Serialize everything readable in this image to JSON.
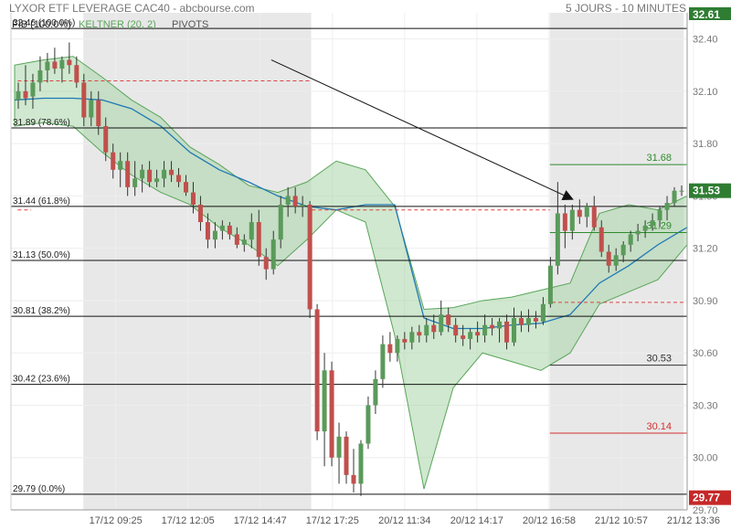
{
  "header": {
    "title": "LYXOR ETF LEVERAGE CAC40 - abcbourse.com",
    "period": "5 JOURS - 10 MINUTES"
  },
  "legend": {
    "fibo": "FIB (100.0%)",
    "keltner": "KELTNER (20, 2)",
    "pivots": "PIVOTS"
  },
  "colors": {
    "up": "#5a9a5a",
    "down": "#c0504d",
    "band_fill": "#a8d6a8",
    "band_edge": "#5aa55a",
    "mid": "#1f78b4",
    "shade": "#e8e8e8",
    "last_price": "#2e7d32",
    "low_marker": "#c62828",
    "pivot_res": "#2e8b2e",
    "pivot_sup": "#d32f2f"
  },
  "chart_data": {
    "type": "candlestick",
    "ylim": [
      29.7,
      32.55
    ],
    "x_ticks": [
      "17/12 09:25",
      "17/12 12:05",
      "17/12 14:47",
      "17/12 17:25",
      "20/12 11:34",
      "20/12 14:17",
      "20/12 16:58",
      "21/12 10:57",
      "21/12 13:36"
    ],
    "y_ticks": [
      "32.40",
      "32.10",
      "31.80",
      "31.50",
      "31.20",
      "30.90",
      "30.60",
      "30.30",
      "30.00",
      "29.70"
    ],
    "fibonacci": [
      {
        "label": "32.46 (100.0%)",
        "value": 32.46
      },
      {
        "label": "31.89 (78.6%)",
        "value": 31.89
      },
      {
        "label": "31.44 (61.8%)",
        "value": 31.44
      },
      {
        "label": "31.13 (50.0%)",
        "value": 31.13
      },
      {
        "label": "30.81 (38.2%)",
        "value": 30.81
      },
      {
        "label": "30.42 (23.6%)",
        "value": 30.42
      },
      {
        "label": "29.79 (0.0%)",
        "value": 29.79
      }
    ],
    "pivot_levels": [
      {
        "label": "31.68",
        "value": 31.68,
        "kind": "resistance"
      },
      {
        "label": "31.29",
        "value": 31.29,
        "kind": "pivot"
      },
      {
        "label": "30.53",
        "value": 30.53,
        "kind": "neutral"
      },
      {
        "label": "30.14",
        "value": 30.14,
        "kind": "support"
      }
    ],
    "last_price": {
      "label": "31.53",
      "value": 31.53
    },
    "low_marker": {
      "label": "29.77",
      "value": 29.77
    },
    "top_marker": {
      "label": "32.61",
      "value": 32.61
    },
    "candles": [
      {
        "o": 32.05,
        "h": 32.15,
        "l": 32.0,
        "c": 32.1
      },
      {
        "o": 32.1,
        "h": 32.25,
        "l": 32.02,
        "c": 32.06
      },
      {
        "o": 32.07,
        "h": 32.2,
        "l": 32.0,
        "c": 32.15
      },
      {
        "o": 32.15,
        "h": 32.3,
        "l": 32.1,
        "c": 32.22
      },
      {
        "o": 32.22,
        "h": 32.32,
        "l": 32.15,
        "c": 32.27
      },
      {
        "o": 32.27,
        "h": 32.35,
        "l": 32.2,
        "c": 32.23
      },
      {
        "o": 32.23,
        "h": 32.3,
        "l": 32.15,
        "c": 32.28
      },
      {
        "o": 32.28,
        "h": 32.38,
        "l": 32.2,
        "c": 32.25
      },
      {
        "o": 32.25,
        "h": 32.3,
        "l": 32.12,
        "c": 32.15
      },
      {
        "o": 32.15,
        "h": 32.2,
        "l": 31.9,
        "c": 31.95
      },
      {
        "o": 31.95,
        "h": 32.1,
        "l": 31.9,
        "c": 32.05
      },
      {
        "o": 32.05,
        "h": 32.1,
        "l": 31.85,
        "c": 31.9
      },
      {
        "o": 31.9,
        "h": 31.95,
        "l": 31.7,
        "c": 31.75
      },
      {
        "o": 31.75,
        "h": 31.8,
        "l": 31.6,
        "c": 31.65
      },
      {
        "o": 31.65,
        "h": 31.75,
        "l": 31.55,
        "c": 31.7
      },
      {
        "o": 31.7,
        "h": 31.75,
        "l": 31.5,
        "c": 31.55
      },
      {
        "o": 31.55,
        "h": 31.7,
        "l": 31.5,
        "c": 31.6
      },
      {
        "o": 31.6,
        "h": 31.68,
        "l": 31.52,
        "c": 31.65
      },
      {
        "o": 31.65,
        "h": 31.7,
        "l": 31.55,
        "c": 31.58
      },
      {
        "o": 31.58,
        "h": 31.65,
        "l": 31.55,
        "c": 31.6
      },
      {
        "o": 31.6,
        "h": 31.7,
        "l": 31.55,
        "c": 31.65
      },
      {
        "o": 31.65,
        "h": 31.7,
        "l": 31.58,
        "c": 31.62
      },
      {
        "o": 31.62,
        "h": 31.66,
        "l": 31.55,
        "c": 31.58
      },
      {
        "o": 31.58,
        "h": 31.62,
        "l": 31.5,
        "c": 31.52
      },
      {
        "o": 31.52,
        "h": 31.58,
        "l": 31.4,
        "c": 31.45
      },
      {
        "o": 31.45,
        "h": 31.5,
        "l": 31.3,
        "c": 31.35
      },
      {
        "o": 31.35,
        "h": 31.4,
        "l": 31.2,
        "c": 31.25
      },
      {
        "o": 31.25,
        "h": 31.35,
        "l": 31.2,
        "c": 31.3
      },
      {
        "o": 31.3,
        "h": 31.36,
        "l": 31.25,
        "c": 31.33
      },
      {
        "o": 31.33,
        "h": 31.35,
        "l": 31.25,
        "c": 31.28
      },
      {
        "o": 31.28,
        "h": 31.32,
        "l": 31.2,
        "c": 31.22
      },
      {
        "o": 31.22,
        "h": 31.28,
        "l": 31.18,
        "c": 31.25
      },
      {
        "o": 31.25,
        "h": 31.4,
        "l": 31.2,
        "c": 31.35
      },
      {
        "o": 31.35,
        "h": 31.42,
        "l": 31.1,
        "c": 31.15
      },
      {
        "o": 31.15,
        "h": 31.2,
        "l": 31.02,
        "c": 31.08
      },
      {
        "o": 31.08,
        "h": 31.3,
        "l": 31.05,
        "c": 31.25
      },
      {
        "o": 31.25,
        "h": 31.5,
        "l": 31.2,
        "c": 31.45
      },
      {
        "o": 31.45,
        "h": 31.55,
        "l": 31.38,
        "c": 31.5
      },
      {
        "o": 31.5,
        "h": 31.55,
        "l": 31.4,
        "c": 31.44
      },
      {
        "o": 31.44,
        "h": 31.5,
        "l": 31.38,
        "c": 31.45
      },
      {
        "o": 31.45,
        "h": 31.47,
        "l": 30.8,
        "c": 30.85
      },
      {
        "o": 30.85,
        "h": 30.88,
        "l": 30.1,
        "c": 30.15
      },
      {
        "o": 30.15,
        "h": 30.6,
        "l": 29.95,
        "c": 30.5
      },
      {
        "o": 30.5,
        "h": 30.55,
        "l": 29.95,
        "c": 30.0
      },
      {
        "o": 30.0,
        "h": 30.2,
        "l": 29.85,
        "c": 30.12
      },
      {
        "o": 30.12,
        "h": 30.15,
        "l": 29.85,
        "c": 29.9
      },
      {
        "o": 29.9,
        "h": 30.05,
        "l": 29.8,
        "c": 29.85
      },
      {
        "o": 29.85,
        "h": 30.1,
        "l": 29.78,
        "c": 30.08
      },
      {
        "o": 30.08,
        "h": 30.35,
        "l": 30.05,
        "c": 30.3
      },
      {
        "o": 30.3,
        "h": 30.5,
        "l": 30.25,
        "c": 30.45
      },
      {
        "o": 30.45,
        "h": 30.7,
        "l": 30.4,
        "c": 30.65
      },
      {
        "o": 30.65,
        "h": 30.72,
        "l": 30.55,
        "c": 30.6
      },
      {
        "o": 30.6,
        "h": 30.7,
        "l": 30.55,
        "c": 30.68
      },
      {
        "o": 30.68,
        "h": 30.72,
        "l": 30.62,
        "c": 30.66
      },
      {
        "o": 30.66,
        "h": 30.75,
        "l": 30.62,
        "c": 30.72
      },
      {
        "o": 30.72,
        "h": 30.76,
        "l": 30.66,
        "c": 30.7
      },
      {
        "o": 30.7,
        "h": 30.8,
        "l": 30.66,
        "c": 30.76
      },
      {
        "o": 30.76,
        "h": 30.82,
        "l": 30.68,
        "c": 30.72
      },
      {
        "o": 30.72,
        "h": 30.9,
        "l": 30.7,
        "c": 30.82
      },
      {
        "o": 30.82,
        "h": 30.86,
        "l": 30.72,
        "c": 30.76
      },
      {
        "o": 30.76,
        "h": 30.8,
        "l": 30.66,
        "c": 30.7
      },
      {
        "o": 30.7,
        "h": 30.76,
        "l": 30.64,
        "c": 30.68
      },
      {
        "o": 30.68,
        "h": 30.74,
        "l": 30.62,
        "c": 30.72
      },
      {
        "o": 30.72,
        "h": 30.78,
        "l": 30.66,
        "c": 30.7
      },
      {
        "o": 30.7,
        "h": 30.82,
        "l": 30.66,
        "c": 30.76
      },
      {
        "o": 30.76,
        "h": 30.8,
        "l": 30.7,
        "c": 30.74
      },
      {
        "o": 30.74,
        "h": 30.8,
        "l": 30.66,
        "c": 30.78
      },
      {
        "o": 30.78,
        "h": 30.82,
        "l": 30.62,
        "c": 30.66
      },
      {
        "o": 30.66,
        "h": 30.86,
        "l": 30.64,
        "c": 30.8
      },
      {
        "o": 30.8,
        "h": 30.84,
        "l": 30.72,
        "c": 30.76
      },
      {
        "o": 30.76,
        "h": 30.85,
        "l": 30.72,
        "c": 30.8
      },
      {
        "o": 30.8,
        "h": 30.84,
        "l": 30.74,
        "c": 30.78
      },
      {
        "o": 30.78,
        "h": 30.92,
        "l": 30.76,
        "c": 30.88
      },
      {
        "o": 30.88,
        "h": 31.15,
        "l": 30.86,
        "c": 31.1
      },
      {
        "o": 31.1,
        "h": 31.58,
        "l": 31.05,
        "c": 31.4
      },
      {
        "o": 31.4,
        "h": 31.45,
        "l": 31.2,
        "c": 31.3
      },
      {
        "o": 31.3,
        "h": 31.45,
        "l": 31.25,
        "c": 31.42
      },
      {
        "o": 31.42,
        "h": 31.48,
        "l": 31.34,
        "c": 31.38
      },
      {
        "o": 31.38,
        "h": 31.46,
        "l": 31.32,
        "c": 31.44
      },
      {
        "o": 31.44,
        "h": 31.5,
        "l": 31.3,
        "c": 31.32
      },
      {
        "o": 31.32,
        "h": 31.36,
        "l": 31.15,
        "c": 31.18
      },
      {
        "o": 31.18,
        "h": 31.22,
        "l": 31.06,
        "c": 31.1
      },
      {
        "o": 31.1,
        "h": 31.2,
        "l": 31.07,
        "c": 31.16
      },
      {
        "o": 31.16,
        "h": 31.24,
        "l": 31.12,
        "c": 31.22
      },
      {
        "o": 31.22,
        "h": 31.3,
        "l": 31.18,
        "c": 31.28
      },
      {
        "o": 31.28,
        "h": 31.34,
        "l": 31.24,
        "c": 31.3
      },
      {
        "o": 31.3,
        "h": 31.36,
        "l": 31.26,
        "c": 31.33
      },
      {
        "o": 31.33,
        "h": 31.4,
        "l": 31.3,
        "c": 31.36
      },
      {
        "o": 31.36,
        "h": 31.44,
        "l": 31.32,
        "c": 31.42
      },
      {
        "o": 31.42,
        "h": 31.5,
        "l": 31.36,
        "c": 31.46
      },
      {
        "o": 31.46,
        "h": 31.55,
        "l": 31.44,
        "c": 31.53
      },
      {
        "o": 31.53,
        "h": 31.56,
        "l": 31.5,
        "c": 31.53
      }
    ],
    "keltner_mid": [
      32.05,
      32.06,
      32.06,
      32.05,
      32.0,
      31.9,
      31.75,
      31.65,
      31.58,
      31.5,
      31.44,
      31.42,
      31.45,
      31.45,
      30.8,
      30.74,
      30.74,
      30.76,
      30.77,
      30.82,
      31.0,
      31.1,
      31.22,
      31.32
    ],
    "keltner_upper": [
      32.25,
      32.28,
      32.3,
      32.18,
      32.05,
      31.95,
      31.78,
      31.68,
      31.56,
      31.52,
      31.58,
      31.7,
      31.65,
      31.44,
      30.85,
      30.86,
      30.9,
      30.92,
      30.96,
      31.0,
      31.4,
      31.45,
      31.42,
      31.5
    ],
    "keltner_lower": [
      31.9,
      31.92,
      31.9,
      31.75,
      31.62,
      31.52,
      31.45,
      31.32,
      31.22,
      31.1,
      31.25,
      31.42,
      31.35,
      30.7,
      29.82,
      30.4,
      30.6,
      30.55,
      30.5,
      30.6,
      30.88,
      30.95,
      31.02,
      31.22
    ],
    "trend_line": {
      "x": [
        0.385,
        0.82
      ],
      "y": [
        32.28,
        31.5
      ]
    }
  }
}
